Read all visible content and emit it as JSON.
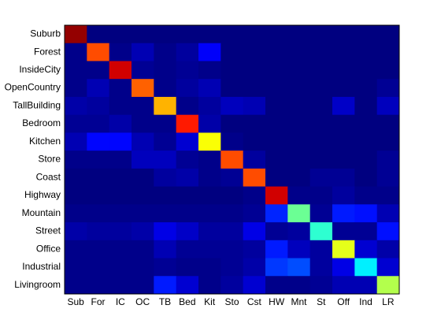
{
  "chart_data": {
    "type": "heatmap",
    "rows": [
      "Suburb",
      "Forest",
      "InsideCity",
      "OpenCountry",
      "TallBuilding",
      "Bedroom",
      "Kitchen",
      "Store",
      "Coast",
      "Highway",
      "Mountain",
      "Street",
      "Office",
      "Industrial",
      "Livingroom"
    ],
    "columns": [
      "Sub",
      "For",
      "IC",
      "OC",
      "TB",
      "Bed",
      "Kit",
      "Sto",
      "Cst",
      "HW",
      "Mnt",
      "St",
      "Off",
      "Ind",
      "LR"
    ],
    "colormap": "jet",
    "clim": [
      0,
      1
    ],
    "values": [
      [
        0.98,
        0,
        0,
        0,
        0,
        0,
        0,
        0,
        0,
        0,
        0,
        0,
        0,
        0,
        0
      ],
      [
        0.01,
        0.8,
        0.01,
        0.05,
        0.01,
        0.03,
        0.12,
        0,
        0,
        0,
        0,
        0,
        0,
        0,
        0
      ],
      [
        0.01,
        0.01,
        0.92,
        0.02,
        0.01,
        0.02,
        0.01,
        0,
        0,
        0,
        0,
        0,
        0,
        0,
        0
      ],
      [
        0.01,
        0.05,
        0.01,
        0.78,
        0.01,
        0.03,
        0.05,
        0,
        0,
        0,
        0,
        0,
        0,
        0,
        0.02
      ],
      [
        0.04,
        0.03,
        0.01,
        0.01,
        0.7,
        0.01,
        0.03,
        0.06,
        0.05,
        0,
        0,
        0,
        0.07,
        0,
        0.06
      ],
      [
        0.02,
        0.02,
        0.04,
        0.01,
        0.01,
        0.85,
        0.04,
        0,
        0,
        0,
        0,
        0,
        0,
        0,
        0
      ],
      [
        0.05,
        0.13,
        0.13,
        0.05,
        0.02,
        0.08,
        0.62,
        0.01,
        0,
        0,
        0,
        0,
        0,
        0,
        0
      ],
      [
        0.01,
        0.01,
        0.01,
        0.06,
        0.06,
        0.02,
        0.01,
        0.8,
        0.03,
        0,
        0,
        0,
        0,
        0,
        0.02
      ],
      [
        0,
        0,
        0,
        0,
        0.03,
        0.04,
        0.01,
        0.02,
        0.8,
        0,
        0,
        0.02,
        0.02,
        0,
        0.02
      ],
      [
        0,
        0,
        0,
        0,
        0,
        0,
        0,
        0,
        0.01,
        0.92,
        0.01,
        0.01,
        0.03,
        0.01,
        0.01
      ],
      [
        0.01,
        0.01,
        0.01,
        0.01,
        0.01,
        0.01,
        0.01,
        0.01,
        0.02,
        0.16,
        0.48,
        0.02,
        0.15,
        0.14,
        0.05
      ],
      [
        0.04,
        0.03,
        0.03,
        0.04,
        0.1,
        0.07,
        0.03,
        0.03,
        0.1,
        0.02,
        0.03,
        0.42,
        0.02,
        0.02,
        0.14
      ],
      [
        0.01,
        0.01,
        0.01,
        0.01,
        0.05,
        0.02,
        0.02,
        0.02,
        0.03,
        0.15,
        0.06,
        0.03,
        0.6,
        0.08,
        0.04
      ],
      [
        0.01,
        0.01,
        0.01,
        0.01,
        0.02,
        0.01,
        0.01,
        0.02,
        0.04,
        0.18,
        0.2,
        0.03,
        0.1,
        0.36,
        0.08
      ],
      [
        0.01,
        0.01,
        0.01,
        0.01,
        0.15,
        0.08,
        0.01,
        0.03,
        0.08,
        0.01,
        0.01,
        0.02,
        0.05,
        0.05,
        0.55
      ]
    ]
  }
}
